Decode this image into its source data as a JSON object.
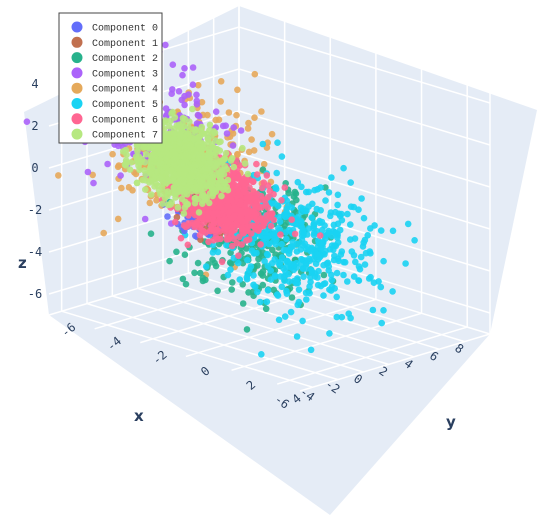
{
  "chart_data": {
    "type": "scatter",
    "dimensions": 3,
    "grid": true,
    "legend_position": "top-left",
    "axes": {
      "x": {
        "label": "x",
        "ticks": [
          "-6",
          "-4",
          "-2",
          "0",
          "2",
          "4",
          "6",
          "8"
        ]
      },
      "y": {
        "label": "y",
        "ticks": [
          "4",
          "2",
          "0",
          "-2",
          "-4",
          "-6"
        ]
      },
      "z": {
        "label": "z",
        "ticks": [
          "4",
          "2",
          "0",
          "-2",
          "-4",
          "-6"
        ]
      }
    },
    "series": [
      {
        "name": "Component 0",
        "color": "#636efa",
        "center": [
          -1.5,
          -2.5,
          -2.0
        ],
        "spread": 0.5,
        "count": 80
      },
      {
        "name": "Component 1",
        "color": "#c1704f",
        "center": [
          -1.2,
          -2.0,
          -1.8
        ],
        "spread": 0.5,
        "count": 80
      },
      {
        "name": "Component 2",
        "color": "#27b28c",
        "center": [
          0.0,
          -1.0,
          -3.0
        ],
        "spread": 1.3,
        "count": 320
      },
      {
        "name": "Component 3",
        "color": "#ab63fa",
        "center": [
          -0.5,
          -4.5,
          1.0
        ],
        "spread": 1.4,
        "count": 190
      },
      {
        "name": "Component 4",
        "color": "#e5a95b",
        "center": [
          -0.5,
          -3.5,
          0.0
        ],
        "spread": 1.5,
        "count": 300
      },
      {
        "name": "Component 5",
        "color": "#19d3f3",
        "center": [
          1.0,
          0.5,
          -3.0
        ],
        "spread": 1.5,
        "count": 420
      },
      {
        "name": "Component 6",
        "color": "#ff6692",
        "center": [
          -0.5,
          -2.0,
          -1.5
        ],
        "spread": 0.8,
        "count": 850
      },
      {
        "name": "Component 7",
        "color": "#b6e880",
        "center": [
          -1.0,
          -3.5,
          0.0
        ],
        "spread": 0.8,
        "count": 950
      }
    ]
  }
}
